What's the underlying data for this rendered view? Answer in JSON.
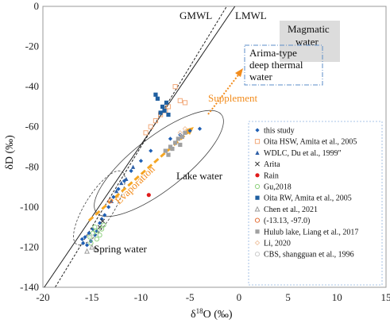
{
  "chart_data": {
    "type": "scatter",
    "xlabel_base": "δ",
    "xlabel_sup": "18",
    "xlabel_rest": "O (‰)",
    "ylabel": "δD (‰)",
    "xlim": [
      -20,
      15
    ],
    "ylim": [
      -140,
      0
    ],
    "xticks": [
      -20,
      -15,
      -10,
      -5,
      0,
      5,
      10,
      15
    ],
    "yticks": [
      0,
      -20,
      -40,
      -60,
      -80,
      -100,
      -120,
      -140
    ],
    "lines": [
      {
        "name": "GMWL",
        "slope": 8,
        "intercept": 10,
        "style": "dashed"
      },
      {
        "name": "LMWL",
        "slope": 7.2,
        "intercept": 3,
        "style": "solid"
      }
    ],
    "annotations": {
      "gmwl": "GMWL",
      "lmwl": "LMWL",
      "magmatic_1": "Magmatic",
      "magmatic_2": "water",
      "arima_1": "Arima-type",
      "arima_2": "deep thermal",
      "arima_3": "water",
      "supplement": "Supplement",
      "evaporation": "Evaporation",
      "lake_water": "Lake water",
      "spring_water": "Spring water"
    },
    "colors": {
      "this_study": "#1f5fb4",
      "oita_hsw": "#f2a97a",
      "wdlc": "#2e5fa6",
      "rain": "#e01b1b",
      "gu": "#8fd17f",
      "oita_rw": "#1f5fa0",
      "chen": "#9a9a9a",
      "minus13": "#e4723a",
      "hulub": "#a0a0a0",
      "li": "#f0c8a8",
      "cbs": "#cccccc",
      "orange": "#f28c1d",
      "magmatic_box": "#dcdcdc",
      "arima_box": "#5b8ec9"
    },
    "series": [
      {
        "name": "this study",
        "marker": "diamond",
        "color": "#1f5fb4",
        "points": [
          [
            -16,
            -116
          ],
          [
            -15.9,
            -118
          ],
          [
            -15.7,
            -115
          ],
          [
            -15.5,
            -119
          ],
          [
            -15.3,
            -113
          ],
          [
            -15.1,
            -117
          ],
          [
            -14.9,
            -111
          ],
          [
            -14.7,
            -114
          ],
          [
            -14.5,
            -112
          ],
          [
            -14.2,
            -108
          ],
          [
            -14,
            -106
          ],
          [
            -13.7,
            -104
          ],
          [
            -13.3,
            -100
          ],
          [
            -12.8,
            -95
          ],
          [
            -12.3,
            -91
          ],
          [
            -11.7,
            -87
          ],
          [
            -11,
            -82
          ],
          [
            -10,
            -77
          ],
          [
            -9,
            -72
          ],
          [
            -7,
            -66
          ],
          [
            -6,
            -64
          ],
          [
            -5,
            -62
          ],
          [
            -4,
            -61
          ]
        ]
      },
      {
        "name": "Oita HSW, Amita et al., 2005",
        "marker": "square-open",
        "color": "#f2a97a",
        "points": [
          [
            -9,
            -60
          ],
          [
            -8.5,
            -57
          ],
          [
            -8,
            -54
          ],
          [
            -7.5,
            -52
          ],
          [
            -7.2,
            -50
          ],
          [
            -6,
            -47
          ],
          [
            -5.5,
            -48
          ],
          [
            -6.5,
            -40
          ],
          [
            -9.5,
            -63
          ]
        ]
      },
      {
        "name": "WDLC, Du et al., 1999\"",
        "marker": "triangle",
        "color": "#2e5fa6",
        "points": [
          [
            -13,
            -97
          ],
          [
            -12.5,
            -92
          ],
          [
            -12,
            -88
          ],
          [
            -11.5,
            -86
          ],
          [
            -10.8,
            -80
          ]
        ]
      },
      {
        "name": "Arita",
        "marker": "x",
        "color": "#333333",
        "points": [
          [
            -14.2,
            -110
          ],
          [
            -13.9,
            -107
          ]
        ]
      },
      {
        "name": "Rain",
        "marker": "circle",
        "color": "#e01b1b",
        "points": [
          [
            -9.2,
            -94
          ]
        ]
      },
      {
        "name": "Gu,2018",
        "marker": "circle-open",
        "color": "#8fd17f",
        "points": [
          [
            -15.2,
            -115
          ],
          [
            -14.9,
            -113
          ],
          [
            -14.6,
            -112
          ],
          [
            -14.5,
            -116
          ],
          [
            -14.2,
            -114
          ],
          [
            -14,
            -111
          ],
          [
            -13.8,
            -109
          ],
          [
            -15.1,
            -118
          ],
          [
            -14.7,
            -110
          ]
        ]
      },
      {
        "name": "Oita RW, Amita et al., 2005",
        "marker": "square",
        "color": "#1f5fa0",
        "points": [
          [
            -8.5,
            -44
          ],
          [
            -8.3,
            -46
          ],
          [
            -8,
            -53
          ],
          [
            -7.8,
            -50
          ],
          [
            -7.6,
            -52
          ],
          [
            -7.4,
            -48
          ],
          [
            -7.2,
            -54
          ]
        ]
      },
      {
        "name": "Chen et al., 2021",
        "marker": "triangle-open",
        "color": "#9a9a9a",
        "points": [
          [
            -15.5,
            -122
          ],
          [
            -15,
            -120
          ],
          [
            -14.6,
            -121
          ]
        ]
      },
      {
        "name": "(-13.13,  -97.0)",
        "marker": "circle-open",
        "color": "#e4723a",
        "points": [
          [
            -13.13,
            -97
          ]
        ]
      },
      {
        "name": "Hulub lake, Liang et al., 2017",
        "marker": "square",
        "color": "#a0a0a0",
        "points": [
          [
            -7.5,
            -72
          ],
          [
            -7,
            -70
          ],
          [
            -6.5,
            -68
          ],
          [
            -6.2,
            -66
          ],
          [
            -5.8,
            -65
          ],
          [
            -5.5,
            -63
          ],
          [
            -6,
            -69
          ],
          [
            -7.2,
            -74
          ],
          [
            -6.8,
            -71
          ]
        ]
      },
      {
        "name": "Li, 2020",
        "marker": "diamond-open",
        "color": "#f0c8a8",
        "points": [
          [
            -6,
            -63
          ],
          [
            -5.5,
            -61
          ]
        ]
      },
      {
        "name": "CBS, shangguan et al., 1996",
        "marker": "circle-open",
        "color": "#cccccc",
        "points": [
          [
            -15,
            -115
          ]
        ]
      }
    ]
  }
}
